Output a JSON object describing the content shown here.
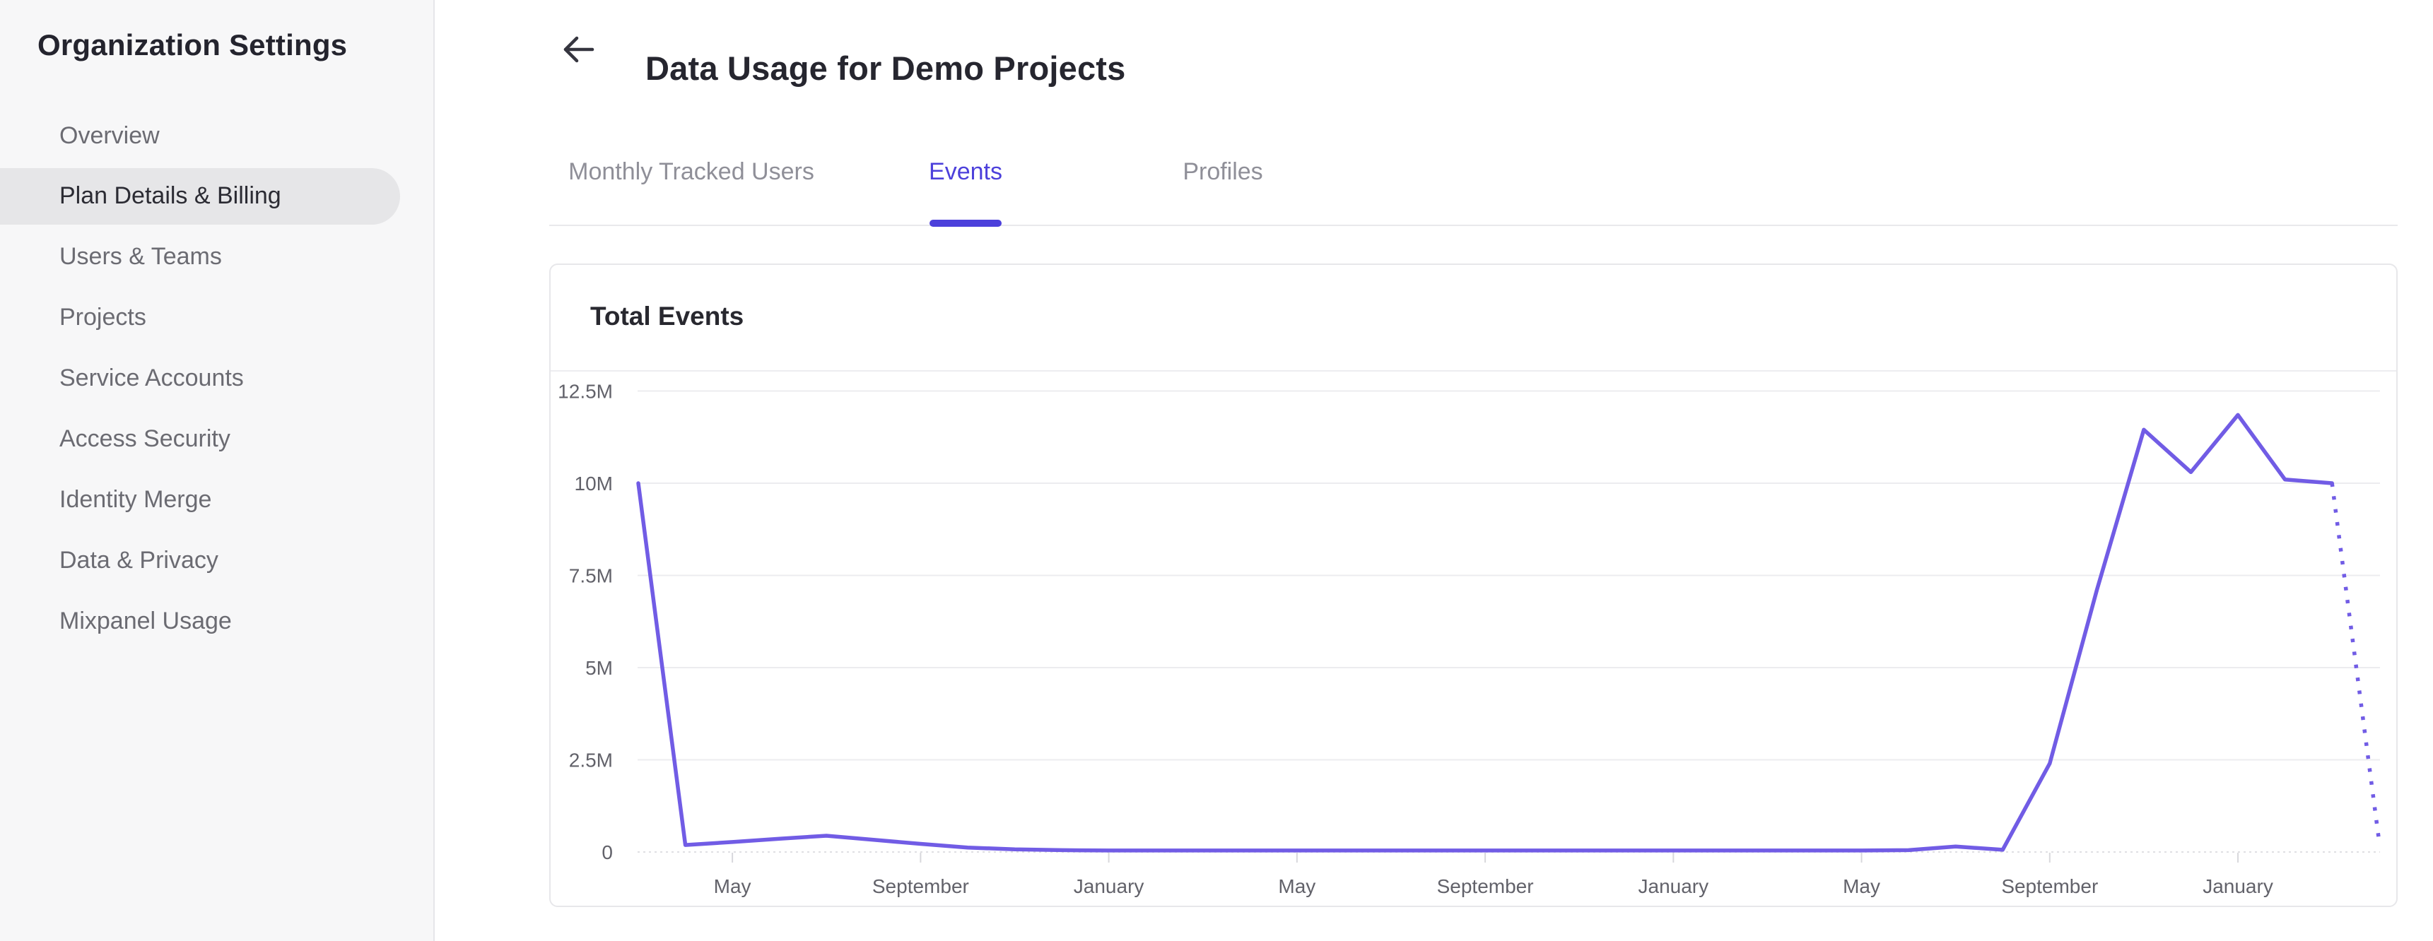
{
  "colors": {
    "accent_purple": "#4c40db",
    "line_purple": "#715ce5",
    "gridline": "#ececef",
    "zero_line": "#dfdfe3",
    "tick": "#d8d8dc",
    "axis_label": "#62626a",
    "sidebar_bg": "#f7f7f8",
    "selected_pill": "#e6e6e8"
  },
  "sidebar": {
    "title": "Organization Settings",
    "selected_index": 1,
    "items": [
      {
        "label": "Overview"
      },
      {
        "label": "Plan Details & Billing"
      },
      {
        "label": "Users & Teams"
      },
      {
        "label": "Projects"
      },
      {
        "label": "Service Accounts"
      },
      {
        "label": "Access Security"
      },
      {
        "label": "Identity Merge"
      },
      {
        "label": "Data & Privacy"
      },
      {
        "label": "Mixpanel Usage"
      }
    ]
  },
  "header": {
    "title": "Data Usage for Demo Projects",
    "back_icon": "left-arrow"
  },
  "tabs": [
    {
      "label": "Monthly Tracked Users",
      "active": false
    },
    {
      "label": "Events",
      "active": true
    },
    {
      "label": "Profiles",
      "active": false
    }
  ],
  "chart_data": {
    "type": "line",
    "title": "Total Events",
    "ylabel": "",
    "xlabel": "",
    "legend": false,
    "grid": "horizontal",
    "ylim_millions": [
      0,
      12.5
    ],
    "y_ticks": [
      "12.5M",
      "10M",
      "7.5M",
      "5M",
      "2.5M",
      "0"
    ],
    "y_tick_values_millions": [
      12.5,
      10,
      7.5,
      5,
      2.5,
      0
    ],
    "x_unit": "month",
    "x_tick_labels": [
      "May",
      "September",
      "January",
      "May",
      "September",
      "January",
      "May",
      "September",
      "January"
    ],
    "x_tick_month_index": [
      2,
      6,
      10,
      14,
      18,
      22,
      26,
      30,
      34
    ],
    "series": [
      {
        "name": "Total Events",
        "values_millions": [
          10.0,
          0.19,
          0.27,
          0.36,
          0.44,
          0.33,
          0.22,
          0.12,
          0.07,
          0.05,
          0.04,
          0.04,
          0.04,
          0.04,
          0.04,
          0.04,
          0.04,
          0.04,
          0.04,
          0.04,
          0.04,
          0.04,
          0.04,
          0.04,
          0.04,
          0.04,
          0.04,
          0.05,
          0.15,
          0.06,
          2.4,
          7.1,
          11.45,
          10.3,
          11.85,
          10.1,
          10.0
        ]
      }
    ],
    "projection": {
      "style": "dotted",
      "from_month_index": 36,
      "to_month_index": 37,
      "end_value_millions": 0.3
    }
  }
}
